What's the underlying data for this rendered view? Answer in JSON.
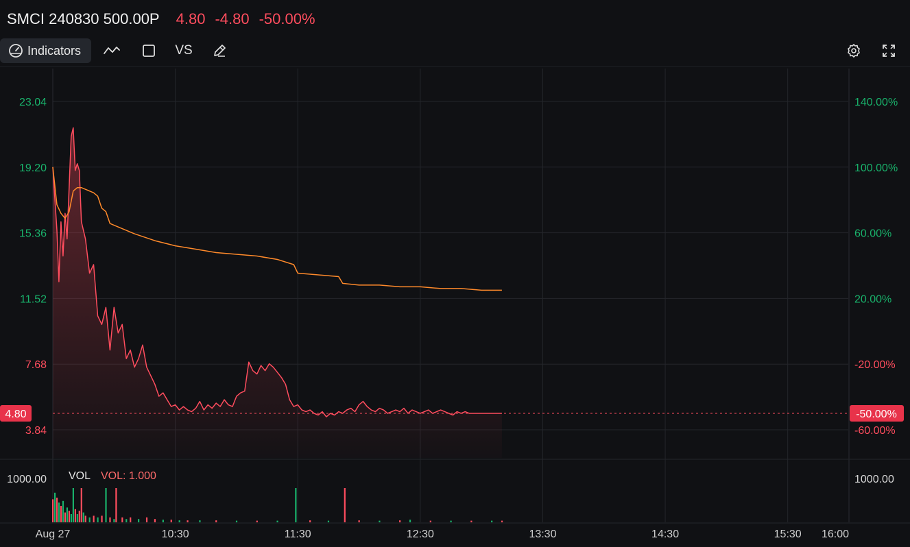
{
  "header": {
    "title": "SMCI 240830 500.00P",
    "price": "4.80",
    "change": "-4.80",
    "change_pct": "-50.00%"
  },
  "toolbar": {
    "indicators_label": "Indicators",
    "vs_label": "VS",
    "icons": [
      "indicator-gauge-icon",
      "line-chart-icon",
      "rectangle-icon",
      "pencil-icon",
      "gear-icon",
      "fullscreen-icon"
    ]
  },
  "colors": {
    "background": "#101114",
    "price_line": "#ff4d5e",
    "avg_line": "#ff8a2b",
    "green": "#19b26b",
    "red": "#ff4d5e",
    "grid": "#24262b"
  },
  "chart_data": {
    "type": "line",
    "y_left_ticks": [
      "23.04",
      "19.20",
      "15.36",
      "11.52",
      "7.68",
      "3.84"
    ],
    "y_left_tick_values": [
      23.04,
      19.2,
      15.36,
      11.52,
      7.68,
      3.84
    ],
    "y_right_ticks": [
      "140.00%",
      "100.00%",
      "60.00%",
      "20.00%",
      "-20.00%",
      "-60.00%"
    ],
    "current_price_label": "4.80",
    "current_pct_label": "-50.00%",
    "current_value": 4.8,
    "x_ticks": [
      "Aug 27",
      "10:30",
      "11:30",
      "12:30",
      "13:30",
      "14:30",
      "15:30",
      "16:00"
    ],
    "x_tick_minutes": [
      0,
      60,
      120,
      180,
      240,
      300,
      360,
      390
    ],
    "series": [
      {
        "name": "",
        "style": "price",
        "x": [
          0,
          2,
          3,
          4,
          5,
          6,
          7,
          8,
          9,
          10,
          11,
          12,
          13,
          14,
          16,
          18,
          20,
          22,
          24,
          26,
          28,
          30,
          32,
          34,
          36,
          38,
          40,
          42,
          44,
          46,
          48,
          50,
          52,
          54,
          56,
          58,
          60,
          62,
          64,
          66,
          68,
          70,
          72,
          74,
          76,
          78,
          80,
          82,
          84,
          86,
          88,
          90,
          92,
          94,
          96,
          98,
          100,
          102,
          104,
          106,
          108,
          110,
          112,
          114,
          116,
          118,
          120,
          122,
          124,
          126,
          128,
          130,
          132,
          134,
          136,
          138,
          140,
          142,
          144,
          146,
          148,
          150,
          152,
          154,
          156,
          158,
          160,
          162,
          164,
          166,
          168,
          170,
          172,
          174,
          176,
          178,
          180,
          182,
          184,
          186,
          188,
          190,
          192,
          194,
          196,
          198,
          200,
          202,
          204,
          206,
          208,
          210,
          212,
          214,
          216,
          218,
          220
        ],
        "values": [
          19.2,
          15.5,
          12.5,
          16.0,
          14.0,
          16.5,
          15.0,
          18.0,
          21.0,
          21.5,
          19.0,
          19.4,
          19.0,
          16.0,
          15.0,
          13.0,
          13.5,
          10.5,
          10.0,
          11.0,
          8.5,
          11.0,
          9.5,
          10.0,
          8.0,
          8.5,
          7.5,
          8.0,
          8.8,
          7.5,
          7.0,
          6.5,
          5.8,
          6.0,
          5.6,
          5.2,
          5.3,
          5.0,
          5.2,
          5.0,
          4.9,
          5.1,
          5.5,
          5.0,
          5.3,
          5.1,
          5.4,
          5.2,
          5.6,
          5.3,
          5.2,
          5.8,
          6.0,
          6.1,
          7.8,
          7.3,
          7.1,
          7.6,
          7.3,
          7.7,
          7.5,
          7.2,
          6.9,
          6.5,
          5.6,
          5.2,
          5.3,
          5.0,
          4.9,
          5.0,
          4.8,
          4.7,
          4.9,
          4.6,
          4.8,
          4.7,
          4.9,
          4.8,
          5.0,
          5.1,
          4.9,
          5.3,
          5.5,
          5.2,
          5.0,
          4.9,
          5.1,
          5.0,
          4.8,
          4.9,
          5.0,
          4.9,
          5.1,
          4.8,
          5.0,
          4.9,
          4.8,
          4.9,
          5.0,
          4.8,
          4.9,
          5.0,
          4.9,
          4.8,
          4.7,
          4.9,
          4.8,
          4.9,
          4.8,
          4.8,
          4.8,
          4.8,
          4.8,
          4.8,
          4.8,
          4.8,
          4.8
        ],
        "fill": true
      },
      {
        "name": "",
        "style": "average",
        "x": [
          0,
          2,
          4,
          6,
          8,
          10,
          12,
          14,
          16,
          18,
          20,
          22,
          24,
          26,
          28,
          30,
          40,
          50,
          60,
          70,
          80,
          90,
          100,
          110,
          118,
          120,
          130,
          140,
          142,
          150,
          160,
          170,
          180,
          190,
          200,
          210,
          220
        ],
        "values": [
          19.2,
          17.0,
          16.5,
          16.2,
          16.6,
          17.8,
          18.0,
          18.0,
          17.9,
          17.8,
          17.7,
          17.5,
          16.8,
          16.6,
          15.9,
          15.8,
          15.3,
          14.9,
          14.6,
          14.4,
          14.2,
          14.1,
          14.0,
          13.8,
          13.5,
          13.0,
          12.9,
          12.8,
          12.4,
          12.3,
          12.3,
          12.2,
          12.2,
          12.1,
          12.1,
          12.0,
          12.0
        ],
        "fill": false
      }
    ],
    "volume": {
      "label": "VOL",
      "value_label": "VOL: 1.000",
      "tick_label": "1000.00",
      "ymax": 1000,
      "bars": [
        {
          "x": 0,
          "v": 700,
          "c": "r"
        },
        {
          "x": 1,
          "v": 900,
          "c": "g"
        },
        {
          "x": 2,
          "v": 750,
          "c": "r"
        },
        {
          "x": 3,
          "v": 600,
          "c": "g"
        },
        {
          "x": 4,
          "v": 500,
          "c": "r"
        },
        {
          "x": 5,
          "v": 650,
          "c": "g"
        },
        {
          "x": 6,
          "v": 300,
          "c": "r"
        },
        {
          "x": 7,
          "v": 450,
          "c": "g"
        },
        {
          "x": 8,
          "v": 350,
          "c": "r"
        },
        {
          "x": 9,
          "v": 250,
          "c": "g"
        },
        {
          "x": 10,
          "v": 1500,
          "c": "g"
        },
        {
          "x": 11,
          "v": 400,
          "c": "r"
        },
        {
          "x": 12,
          "v": 250,
          "c": "g"
        },
        {
          "x": 13,
          "v": 350,
          "c": "r"
        },
        {
          "x": 14,
          "v": 1300,
          "c": "r"
        },
        {
          "x": 15,
          "v": 300,
          "c": "g"
        },
        {
          "x": 16,
          "v": 200,
          "c": "r"
        },
        {
          "x": 18,
          "v": 150,
          "c": "g"
        },
        {
          "x": 20,
          "v": 200,
          "c": "r"
        },
        {
          "x": 22,
          "v": 150,
          "c": "g"
        },
        {
          "x": 24,
          "v": 200,
          "c": "r"
        },
        {
          "x": 26,
          "v": 1150,
          "c": "g"
        },
        {
          "x": 28,
          "v": 150,
          "c": "r"
        },
        {
          "x": 30,
          "v": 100,
          "c": "g"
        },
        {
          "x": 31,
          "v": 1300,
          "c": "r"
        },
        {
          "x": 34,
          "v": 150,
          "c": "r"
        },
        {
          "x": 36,
          "v": 100,
          "c": "g"
        },
        {
          "x": 38,
          "v": 150,
          "c": "r"
        },
        {
          "x": 42,
          "v": 100,
          "c": "g"
        },
        {
          "x": 46,
          "v": 150,
          "c": "r"
        },
        {
          "x": 50,
          "v": 100,
          "c": "r"
        },
        {
          "x": 54,
          "v": 80,
          "c": "g"
        },
        {
          "x": 58,
          "v": 80,
          "c": "r"
        },
        {
          "x": 62,
          "v": 60,
          "c": "g"
        },
        {
          "x": 66,
          "v": 60,
          "c": "r"
        },
        {
          "x": 72,
          "v": 60,
          "c": "g"
        },
        {
          "x": 80,
          "v": 60,
          "c": "r"
        },
        {
          "x": 90,
          "v": 50,
          "c": "g"
        },
        {
          "x": 100,
          "v": 50,
          "c": "r"
        },
        {
          "x": 110,
          "v": 50,
          "c": "g"
        },
        {
          "x": 119,
          "v": 1100,
          "c": "g"
        },
        {
          "x": 126,
          "v": 60,
          "c": "r"
        },
        {
          "x": 135,
          "v": 50,
          "c": "g"
        },
        {
          "x": 143,
          "v": 1100,
          "c": "r"
        },
        {
          "x": 150,
          "v": 60,
          "c": "r"
        },
        {
          "x": 160,
          "v": 50,
          "c": "g"
        },
        {
          "x": 170,
          "v": 60,
          "c": "r"
        },
        {
          "x": 175,
          "v": 80,
          "c": "g"
        },
        {
          "x": 185,
          "v": 50,
          "c": "r"
        },
        {
          "x": 195,
          "v": 50,
          "c": "g"
        },
        {
          "x": 205,
          "v": 50,
          "c": "r"
        },
        {
          "x": 215,
          "v": 50,
          "c": "g"
        },
        {
          "x": 220,
          "v": 50,
          "c": "r"
        }
      ]
    },
    "ylim": [
      1.3,
      26.0
    ],
    "grid": true
  }
}
